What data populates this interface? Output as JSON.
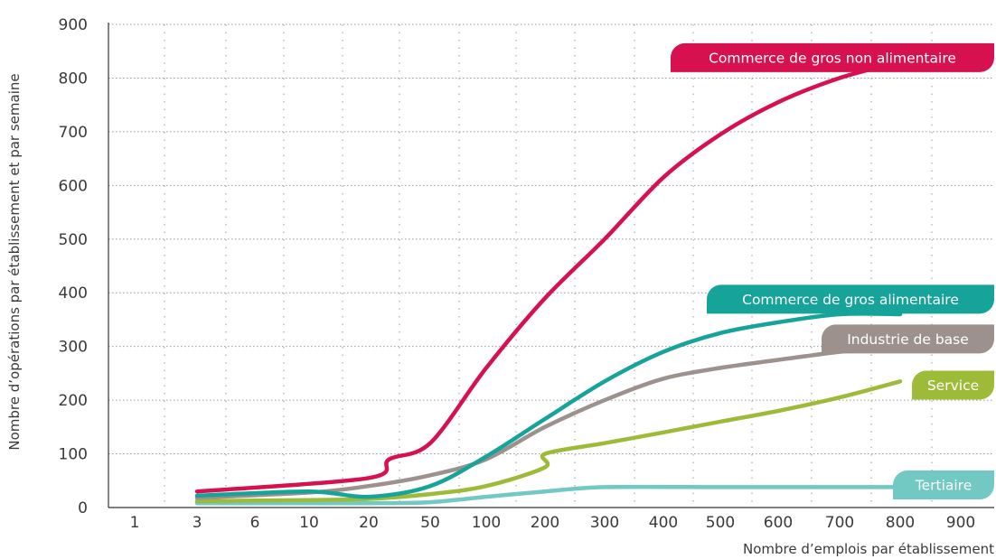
{
  "chart_data": {
    "type": "line",
    "title": "",
    "xlabel": "Nombre d’emplois par établissement",
    "ylabel": "Nombre d’opérations par établissement et par semaine",
    "categories": [
      "1",
      "3",
      "6",
      "10",
      "20",
      "50",
      "100",
      "200",
      "300",
      "400",
      "500",
      "600",
      "700",
      "800",
      "900"
    ],
    "ylim": [
      0,
      900
    ],
    "yticks": [
      0,
      100,
      200,
      300,
      400,
      500,
      600,
      700,
      800,
      900
    ],
    "grid": true,
    "colors": {
      "Commerce de gros non alimentaire": "#d7114f",
      "Commerce de gros alimentaire": "#16a39a",
      "Industrie de base": "#9c918c",
      "Service": "#9dbb39",
      "Tertiaire": "#72c8c2"
    },
    "series": [
      {
        "name": "Commerce de gros non alimentaire",
        "points": [
          [
            3,
            30
          ],
          [
            20,
            55
          ],
          [
            30,
            90
          ],
          [
            50,
            120
          ],
          [
            100,
            260
          ],
          [
            200,
            390
          ],
          [
            300,
            500
          ],
          [
            400,
            615
          ],
          [
            500,
            695
          ],
          [
            600,
            755
          ],
          [
            700,
            800
          ],
          [
            800,
            830
          ]
        ]
      },
      {
        "name": "Commerce de gros alimentaire",
        "points": [
          [
            3,
            22
          ],
          [
            10,
            30
          ],
          [
            20,
            20
          ],
          [
            50,
            40
          ],
          [
            100,
            95
          ],
          [
            200,
            165
          ],
          [
            300,
            235
          ],
          [
            400,
            290
          ],
          [
            500,
            325
          ],
          [
            600,
            345
          ],
          [
            700,
            360
          ],
          [
            800,
            360
          ]
        ]
      },
      {
        "name": "Industrie de base",
        "points": [
          [
            3,
            18
          ],
          [
            10,
            28
          ],
          [
            20,
            40
          ],
          [
            50,
            60
          ],
          [
            100,
            90
          ],
          [
            200,
            150
          ],
          [
            300,
            200
          ],
          [
            400,
            240
          ],
          [
            500,
            260
          ],
          [
            600,
            275
          ],
          [
            700,
            290
          ],
          [
            800,
            300
          ]
        ]
      },
      {
        "name": "Service",
        "points": [
          [
            3,
            12
          ],
          [
            10,
            14
          ],
          [
            20,
            16
          ],
          [
            50,
            25
          ],
          [
            100,
            40
          ],
          [
            200,
            75
          ],
          [
            200,
            100
          ],
          [
            300,
            120
          ],
          [
            400,
            140
          ],
          [
            500,
            160
          ],
          [
            600,
            180
          ],
          [
            700,
            205
          ],
          [
            800,
            235
          ]
        ]
      },
      {
        "name": "Tertiaire",
        "points": [
          [
            3,
            8
          ],
          [
            20,
            8
          ],
          [
            50,
            10
          ],
          [
            100,
            20
          ],
          [
            200,
            30
          ],
          [
            300,
            38
          ],
          [
            500,
            38
          ],
          [
            700,
            38
          ],
          [
            800,
            38
          ]
        ]
      }
    ]
  }
}
